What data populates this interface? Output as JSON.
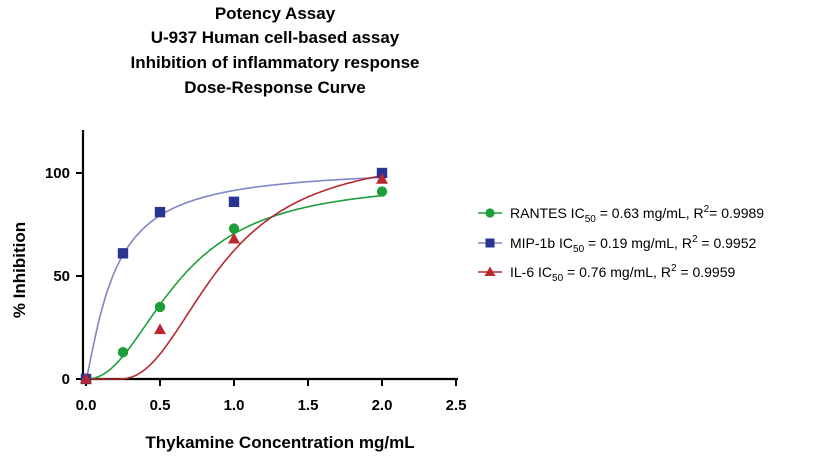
{
  "chart_data": {
    "type": "scatter",
    "title_lines": [
      "Potency Assay",
      "U-937 Human cell-based assay",
      "Inhibition of inflammatory response",
      "Dose-Response Curve"
    ],
    "xlabel": "Thykamine Concentration mg/mL",
    "ylabel": "% Inhibition",
    "xlim": [
      0,
      2.5
    ],
    "ylim": [
      0,
      120
    ],
    "x_ticks": [
      "0.0",
      "0.5",
      "1.0",
      "1.5",
      "2.0",
      "2.5"
    ],
    "x_tick_values": [
      0,
      0.5,
      1.0,
      1.5,
      2.0,
      2.5
    ],
    "y_ticks": [
      "0",
      "50",
      "100"
    ],
    "y_tick_values": [
      0,
      50,
      100
    ],
    "grid": false,
    "legend_position": "right",
    "series": [
      {
        "name": "RANTES",
        "ic50_value": "0.63 mg/mL",
        "r2_value": "0.9989",
        "marker": "circle",
        "color": "#1e9e3a",
        "x": [
          0,
          0.25,
          0.5,
          1.0,
          2.0
        ],
        "y": [
          0,
          13,
          35,
          73,
          91
        ],
        "fit": {
          "ic50": 0.63,
          "hill": 2.2,
          "top": 96
        }
      },
      {
        "name": "MIP-1b",
        "ic50_value": "0.19 mg/mL",
        "r2_value": "0.9952",
        "marker": "square",
        "color": "#2a3591",
        "x": [
          0,
          0.25,
          0.5,
          1.0,
          2.0
        ],
        "y": [
          0,
          61,
          81,
          86,
          100
        ],
        "fit": {
          "ic50": 0.19,
          "hill": 1.25,
          "top": 103
        }
      },
      {
        "name": "IL-6",
        "ic50_value": "0.76 mg/mL",
        "r2_value": "0.9959",
        "marker": "triangle",
        "color": "#b8282e",
        "x": [
          0,
          0.5,
          1.0,
          2.0
        ],
        "y": [
          0,
          24,
          68,
          97
        ],
        "fit": {
          "ic50": 0.76,
          "hill": 2.3,
          "top": 110,
          "x0": 0.22
        }
      }
    ]
  }
}
